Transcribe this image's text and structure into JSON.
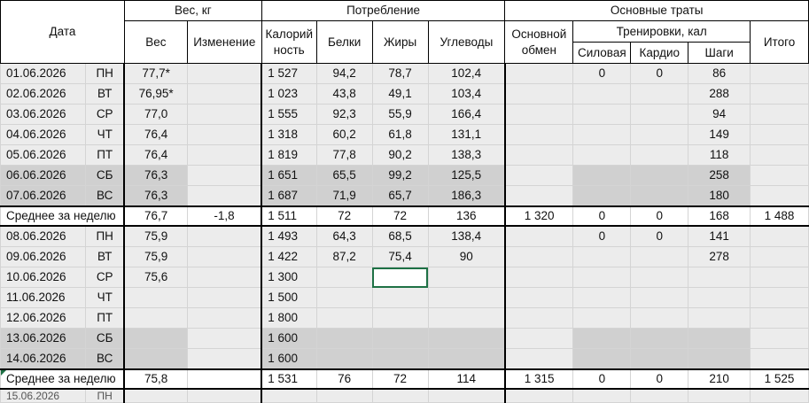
{
  "header": {
    "date": "Дата",
    "weight_group": "Вес, кг",
    "weight": "Вес",
    "change": "Изменение",
    "consumption_group": "Потребление",
    "calories_line1": "Калорий",
    "calories_line2": "ность",
    "protein": "Белки",
    "fat": "Жиры",
    "carbs": "Углеводы",
    "expenses_group": "Основные траты",
    "bmr_line1": "Основной",
    "bmr_line2": "обмен",
    "training_group": "Тренировки, кал",
    "strength": "Силовая",
    "cardio": "Кардио",
    "steps": "Шаги",
    "total": "Итого"
  },
  "week1": [
    {
      "date": "01.06.2026",
      "day": "ПН",
      "weight": "77,7*",
      "cal": "1 527",
      "p": "94,2",
      "f": "78,7",
      "c": "102,4",
      "str": "0",
      "card": "0",
      "steps": "86"
    },
    {
      "date": "02.06.2026",
      "day": "ВТ",
      "weight": "76,95*",
      "cal": "1 023",
      "p": "43,8",
      "f": "49,1",
      "c": "103,4",
      "str": "",
      "card": "",
      "steps": "288"
    },
    {
      "date": "03.06.2026",
      "day": "СР",
      "weight": "77,0",
      "cal": "1 555",
      "p": "92,3",
      "f": "55,9",
      "c": "166,4",
      "str": "",
      "card": "",
      "steps": "94"
    },
    {
      "date": "04.06.2026",
      "day": "ЧТ",
      "weight": "76,4",
      "cal": "1 318",
      "p": "60,2",
      "f": "61,8",
      "c": "131,1",
      "str": "",
      "card": "",
      "steps": "149"
    },
    {
      "date": "05.06.2026",
      "day": "ПТ",
      "weight": "76,4",
      "cal": "1 819",
      "p": "77,8",
      "f": "90,2",
      "c": "138,3",
      "str": "",
      "card": "",
      "steps": "118"
    },
    {
      "date": "06.06.2026",
      "day": "СБ",
      "weight": "76,3",
      "cal": "1 651",
      "p": "65,5",
      "f": "99,2",
      "c": "125,5",
      "str": "",
      "card": "",
      "steps": "258"
    },
    {
      "date": "07.06.2026",
      "day": "ВС",
      "weight": "76,3",
      "cal": "1 687",
      "p": "71,9",
      "f": "65,7",
      "c": "186,3",
      "str": "",
      "card": "",
      "steps": "180"
    }
  ],
  "avg1": {
    "label": "Среднее за неделю",
    "weight": "76,7",
    "change": "-1,8",
    "cal": "1 511",
    "p": "72",
    "f": "72",
    "c": "136",
    "bmr": "1 320",
    "str": "0",
    "card": "0",
    "steps": "168",
    "total": "1 488"
  },
  "week2": [
    {
      "date": "08.06.2026",
      "day": "ПН",
      "weight": "75,9",
      "cal": "1 493",
      "p": "64,3",
      "f": "68,5",
      "c": "138,4",
      "str": "0",
      "card": "0",
      "steps": "141"
    },
    {
      "date": "09.06.2026",
      "day": "ВТ",
      "weight": "75,9",
      "cal": "1 422",
      "p": "87,2",
      "f": "75,4",
      "c": "90",
      "str": "",
      "card": "",
      "steps": "278"
    },
    {
      "date": "10.06.2026",
      "day": "СР",
      "weight": "75,6",
      "cal": "1 300",
      "p": "",
      "f": "",
      "c": "",
      "str": "",
      "card": "",
      "steps": ""
    },
    {
      "date": "11.06.2026",
      "day": "ЧТ",
      "weight": "",
      "cal": "1 500",
      "p": "",
      "f": "",
      "c": "",
      "str": "",
      "card": "",
      "steps": ""
    },
    {
      "date": "12.06.2026",
      "day": "ПТ",
      "weight": "",
      "cal": "1 800",
      "p": "",
      "f": "",
      "c": "",
      "str": "",
      "card": "",
      "steps": ""
    },
    {
      "date": "13.06.2026",
      "day": "СБ",
      "weight": "",
      "cal": "1 600",
      "p": "",
      "f": "",
      "c": "",
      "str": "",
      "card": "",
      "steps": ""
    },
    {
      "date": "14.06.2026",
      "day": "ВС",
      "weight": "",
      "cal": "1 600",
      "p": "",
      "f": "",
      "c": "",
      "str": "",
      "card": "",
      "steps": ""
    }
  ],
  "avg2": {
    "label": "Среднее за неделю",
    "weight": "75,8",
    "change": "",
    "cal": "1 531",
    "p": "76",
    "f": "72",
    "c": "114",
    "bmr": "1 315",
    "str": "0",
    "card": "0",
    "steps": "210",
    "total": "1 525"
  },
  "next_row": {
    "date": "15.06.2026",
    "day": "ПН"
  }
}
